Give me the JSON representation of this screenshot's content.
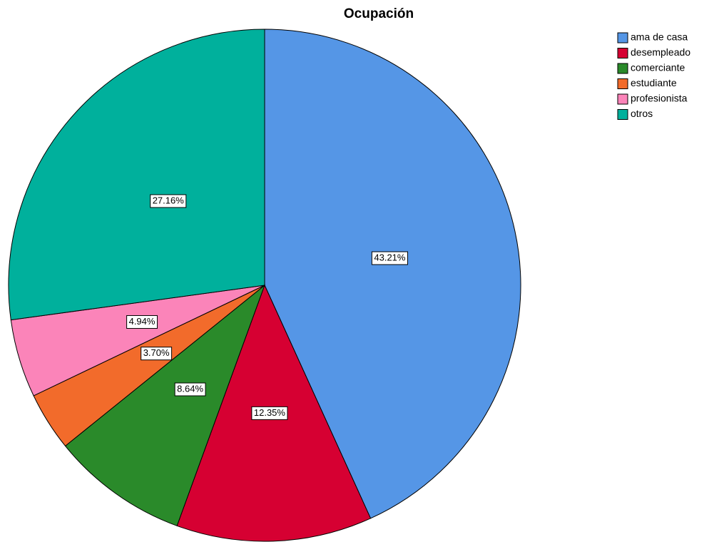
{
  "chart_data": {
    "type": "pie",
    "title": "Ocupación",
    "categories": [
      "ama de casa",
      "desempleado",
      "comerciante",
      "estudiante",
      "profesionista",
      "otros"
    ],
    "values": [
      43.21,
      12.35,
      8.64,
      3.7,
      4.94,
      27.16
    ],
    "value_labels": [
      "43.21%",
      "12.35%",
      "8.64%",
      "3.70%",
      "4.94%",
      "27.16%"
    ],
    "colors": [
      "#5596e6",
      "#d60032",
      "#2a8a2a",
      "#f26b2b",
      "#fb84b9",
      "#00b09c"
    ],
    "legend": "top-right"
  }
}
